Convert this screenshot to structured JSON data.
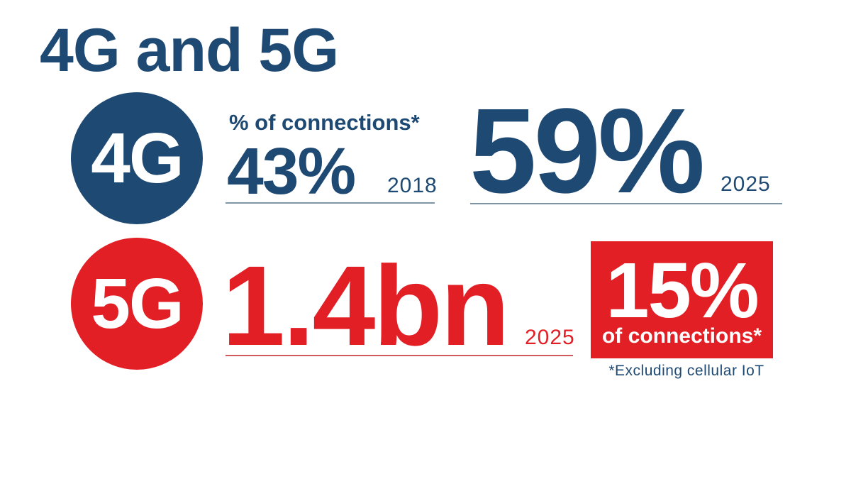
{
  "page": {
    "title": "4G and 5G",
    "footnote": "*Excluding cellular IoT"
  },
  "colors": {
    "navy": "#1E4973",
    "red": "#E31F26",
    "white": "#FFFFFF",
    "divider_blue": "#7E95A6",
    "divider_red": "#D05A5E"
  },
  "fourg": {
    "badge": "4G",
    "label": "% of connections*",
    "stats": [
      {
        "value": "43%",
        "year": "2018"
      },
      {
        "value": "59%",
        "year": "2025"
      }
    ]
  },
  "fiveg": {
    "badge": "5G",
    "stat": {
      "value": "1.4bn",
      "year": "2025"
    },
    "share": {
      "value": "15%",
      "label": "of connections*"
    }
  },
  "chart_data": {
    "type": "table",
    "title": "4G and 5G",
    "series": [
      {
        "name": "4G % of connections*",
        "x": [
          2018,
          2025
        ],
        "values": [
          43,
          59
        ],
        "unit": "%"
      },
      {
        "name": "5G connections",
        "x": [
          2025
        ],
        "values": [
          1.4
        ],
        "unit": "bn"
      },
      {
        "name": "5G % of connections*",
        "x": [
          2025
        ],
        "values": [
          15
        ],
        "unit": "%"
      }
    ],
    "annotations": [
      "*Excluding cellular IoT"
    ],
    "legend_position": "none",
    "grid": false
  }
}
